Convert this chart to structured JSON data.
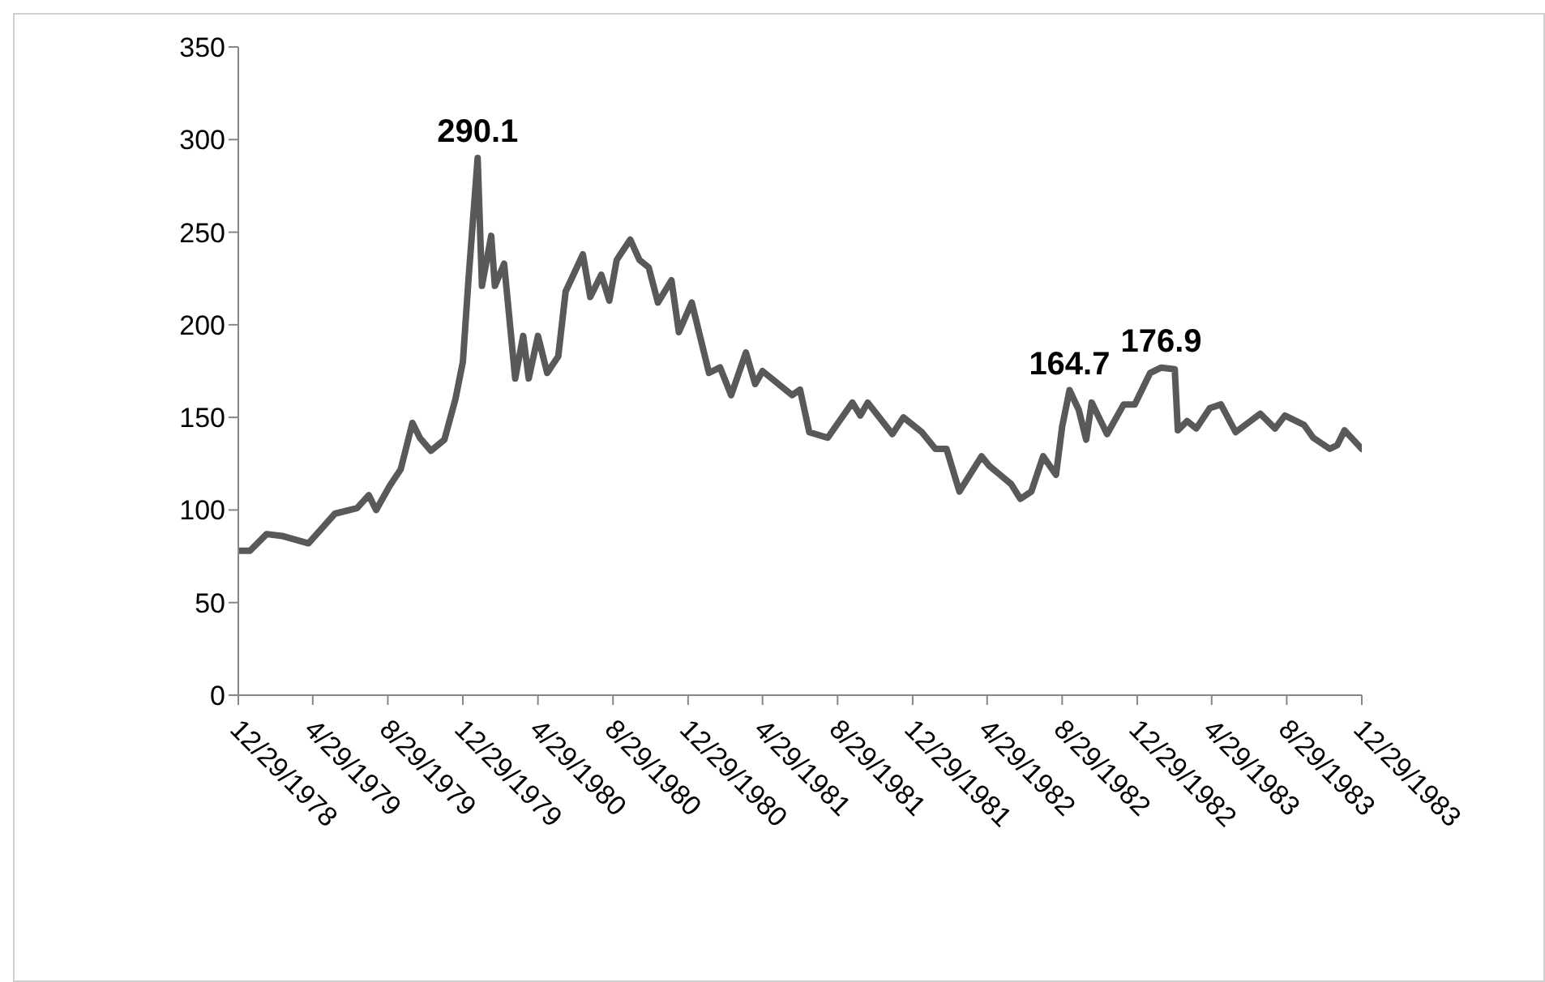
{
  "chart_data": {
    "type": "line",
    "x": [
      "1978-12-29",
      "1979-01-17",
      "1979-02-13",
      "1979-03-10",
      "1979-04-22",
      "1979-06-04",
      "1979-07-10",
      "1979-07-29",
      "1979-08-10",
      "1979-09-01",
      "1979-09-19",
      "1979-10-08",
      "1979-10-20",
      "1979-11-07",
      "1979-11-29",
      "1979-12-17",
      "1979-12-29",
      "1980-01-07",
      "1980-01-22",
      "1980-01-29",
      "1980-02-13",
      "1980-02-19",
      "1980-03-05",
      "1980-03-23",
      "1980-04-05",
      "1980-04-14",
      "1980-04-29",
      "1980-05-14",
      "1980-06-01",
      "1980-06-13",
      "1980-07-11",
      "1980-07-23",
      "1980-08-10",
      "1980-08-23",
      "1980-09-04",
      "1980-09-26",
      "1980-10-11",
      "1980-10-26",
      "1980-11-10",
      "1980-12-02",
      "1980-12-14",
      "1981-01-04",
      "1981-02-01",
      "1981-02-19",
      "1981-03-09",
      "1981-04-02",
      "1981-04-17",
      "1981-04-29",
      "1981-06-16",
      "1981-06-29",
      "1981-07-14",
      "1981-08-13",
      "1981-09-22",
      "1981-10-05",
      "1981-10-17",
      "1981-11-26",
      "1981-12-14",
      "1982-01-13",
      "1982-02-04",
      "1982-02-22",
      "1982-03-15",
      "1982-04-20",
      "1982-05-02",
      "1982-05-20",
      "1982-06-07",
      "1982-06-22",
      "1982-07-10",
      "1982-07-29",
      "1982-08-19",
      "1982-08-29",
      "1982-09-10",
      "1982-09-25",
      "1982-10-07",
      "1982-10-16",
      "1982-11-10",
      "1982-12-07",
      "1982-12-25",
      "1983-01-19",
      "1983-02-06",
      "1983-02-28",
      "1983-03-05",
      "1983-03-20",
      "1983-04-04",
      "1983-04-26",
      "1983-05-14",
      "1983-06-07",
      "1983-07-17",
      "1983-08-10",
      "1983-08-26",
      "1983-09-26",
      "1983-10-11",
      "1983-11-07",
      "1983-11-19",
      "1983-12-01",
      "1983-12-29"
    ],
    "series": [
      {
        "color": "#595959",
        "values": [
          78,
          78,
          87,
          86,
          82,
          98,
          101,
          108,
          100,
          113,
          122,
          147,
          139,
          132,
          138,
          160,
          180,
          224,
          290.1,
          221,
          248,
          221,
          233,
          171,
          194,
          171,
          194,
          174,
          183,
          218,
          238,
          215,
          227,
          213,
          235,
          246,
          235,
          231,
          212,
          224,
          196,
          212,
          174,
          177,
          162,
          185,
          168,
          175,
          162,
          165,
          142,
          139,
          158,
          151,
          158,
          141,
          150,
          142,
          133,
          133,
          110,
          129,
          124,
          119,
          114,
          106,
          110,
          129,
          119,
          145,
          164.7,
          154,
          138,
          158,
          141,
          157,
          157,
          174,
          176.9,
          176,
          143,
          148,
          144,
          155,
          157,
          142,
          152,
          144,
          151,
          146,
          139,
          133,
          135,
          143,
          133
        ]
      }
    ],
    "xlim": [
      "1978-12-29",
      "1983-12-29"
    ],
    "xticks": [
      {
        "value": "1978-12-29",
        "label": "12/29/1978"
      },
      {
        "value": "1979-04-29",
        "label": "4/29/1979"
      },
      {
        "value": "1979-08-29",
        "label": "8/29/1979"
      },
      {
        "value": "1979-12-29",
        "label": "12/29/1979"
      },
      {
        "value": "1980-04-29",
        "label": "4/29/1980"
      },
      {
        "value": "1980-08-29",
        "label": "8/29/1980"
      },
      {
        "value": "1980-12-29",
        "label": "12/29/1980"
      },
      {
        "value": "1981-04-29",
        "label": "4/29/1981"
      },
      {
        "value": "1981-08-29",
        "label": "8/29/1981"
      },
      {
        "value": "1981-12-29",
        "label": "12/29/1981"
      },
      {
        "value": "1982-04-29",
        "label": "4/29/1982"
      },
      {
        "value": "1982-08-29",
        "label": "8/29/1982"
      },
      {
        "value": "1982-12-29",
        "label": "12/29/1982"
      },
      {
        "value": "1983-04-29",
        "label": "4/29/1983"
      },
      {
        "value": "1983-08-29",
        "label": "8/29/1983"
      },
      {
        "value": "1983-12-29",
        "label": "12/29/1983"
      }
    ],
    "ylim": [
      0,
      350
    ],
    "yticks": [
      0,
      50,
      100,
      150,
      200,
      250,
      300,
      350
    ],
    "annotations": [
      {
        "text": "290.1",
        "x": "1980-01-22",
        "y": 290.1
      },
      {
        "text": "164.7",
        "x": "1982-09-10",
        "y": 164.7
      },
      {
        "text": "176.9",
        "x": "1983-02-06",
        "y": 176.9
      }
    ],
    "grid": false,
    "legend": false,
    "marker": "none",
    "line_style": "solid"
  }
}
